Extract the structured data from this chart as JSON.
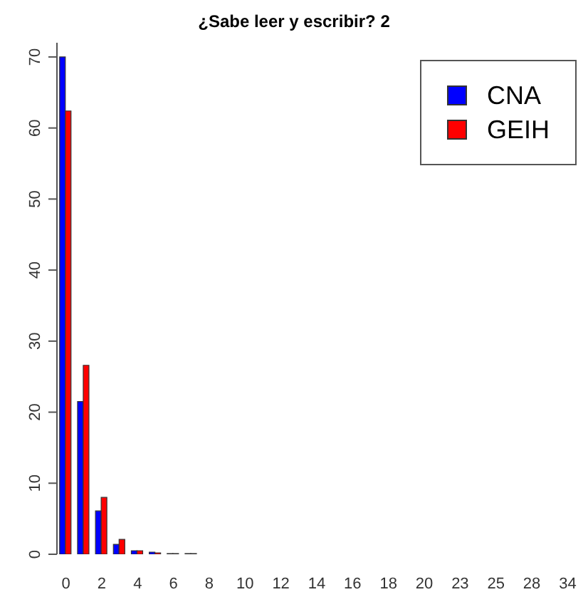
{
  "chart_data": {
    "type": "bar",
    "title": "¿Sabe leer y escribir? 2",
    "categories": [
      "0",
      null,
      "2",
      null,
      "4",
      null,
      "6",
      null,
      "8",
      null,
      "10",
      null,
      "12",
      null,
      "14",
      null,
      "16",
      null,
      "18",
      null,
      "20",
      null,
      "23",
      null,
      "25",
      null,
      "28",
      null,
      "34"
    ],
    "series": [
      {
        "name": "CNA",
        "color": "#0000ff",
        "values": [
          70,
          21.5,
          6.1,
          1.4,
          0.5,
          0.3,
          0.1,
          0.1,
          0,
          0,
          0,
          0,
          0,
          0,
          0,
          0,
          0,
          0,
          0,
          0,
          0,
          0,
          0,
          0,
          0,
          0,
          0,
          0,
          0
        ]
      },
      {
        "name": "GEIH",
        "color": "#ff0000",
        "values": [
          62.4,
          26.6,
          8.0,
          2.1,
          0.5,
          0.2,
          0.1,
          0.1,
          0,
          0,
          0,
          0,
          0,
          0,
          0,
          0,
          0,
          0,
          0,
          0,
          0,
          0,
          0,
          0,
          0,
          0,
          0,
          0,
          0
        ]
      }
    ],
    "ylim": [
      0,
      72
    ],
    "yticks": [
      0,
      10,
      20,
      30,
      40,
      50,
      60,
      70
    ],
    "grid": false,
    "legend": "top right"
  }
}
